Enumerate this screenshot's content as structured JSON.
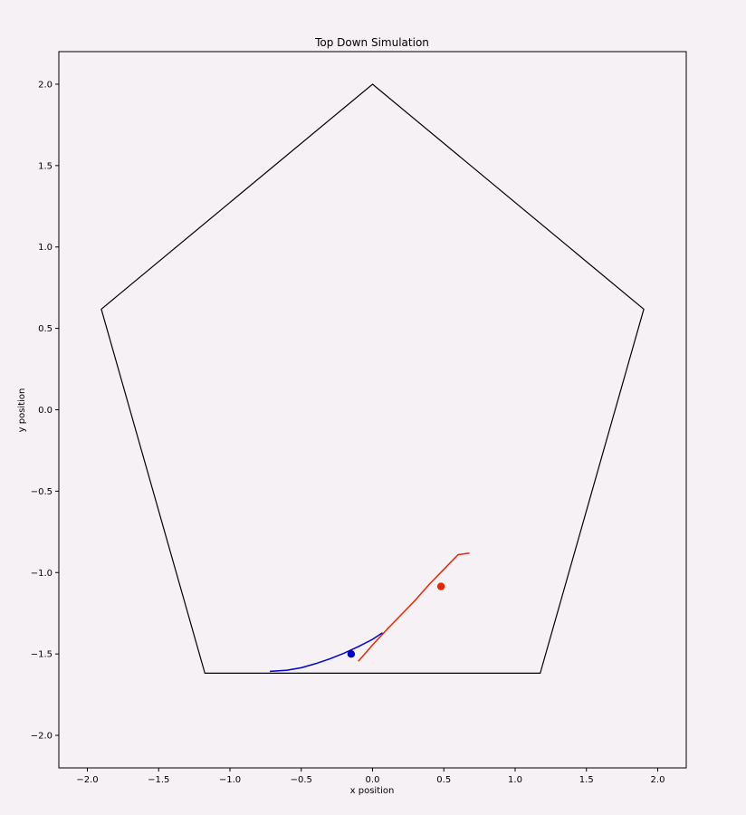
{
  "chart_data": {
    "type": "scatter",
    "title": "Top Down Simulation",
    "xlabel": "x position",
    "ylabel": "y position",
    "xlim": [
      -2.2,
      2.2
    ],
    "ylim": [
      -2.2,
      2.2
    ],
    "xticks": [
      -2.0,
      -1.5,
      -1.0,
      -0.5,
      0.0,
      0.5,
      1.0,
      1.5,
      2.0
    ],
    "xtick_labels": [
      "−2.0",
      "−1.5",
      "−1.0",
      "−0.5",
      "0.0",
      "0.5",
      "1.0",
      "1.5",
      "2.0"
    ],
    "yticks": [
      -2.0,
      -1.5,
      -1.0,
      -0.5,
      0.0,
      0.5,
      1.0,
      1.5,
      2.0
    ],
    "ytick_labels": [
      "−2.0",
      "−1.5",
      "−1.0",
      "−0.5",
      "0.0",
      "0.5",
      "1.0",
      "1.5",
      "2.0"
    ],
    "grid": false,
    "background_color": "#f5f1f5",
    "boundary": {
      "color": "#000000",
      "points": [
        [
          0.0,
          2.0
        ],
        [
          1.902,
          0.618
        ],
        [
          1.176,
          -1.618
        ],
        [
          -1.176,
          -1.618
        ],
        [
          -1.902,
          0.618
        ]
      ]
    },
    "series": [
      {
        "color": "#0000c8",
        "trail": [
          [
            -0.72,
            -1.607
          ],
          [
            -0.6,
            -1.6
          ],
          [
            -0.5,
            -1.585
          ],
          [
            -0.4,
            -1.56
          ],
          [
            -0.3,
            -1.53
          ],
          [
            -0.2,
            -1.495
          ],
          [
            -0.1,
            -1.455
          ],
          [
            0.0,
            -1.41
          ],
          [
            0.07,
            -1.37
          ]
        ],
        "position": [
          -0.15,
          -1.5
        ]
      },
      {
        "color": "#e62800",
        "trail": [
          [
            -0.1,
            -1.545
          ],
          [
            0.0,
            -1.445
          ],
          [
            0.1,
            -1.35
          ],
          [
            0.2,
            -1.26
          ],
          [
            0.3,
            -1.17
          ],
          [
            0.4,
            -1.07
          ],
          [
            0.5,
            -0.98
          ],
          [
            0.6,
            -0.89
          ],
          [
            0.68,
            -0.88
          ]
        ],
        "position": [
          0.48,
          -1.085
        ]
      }
    ]
  }
}
